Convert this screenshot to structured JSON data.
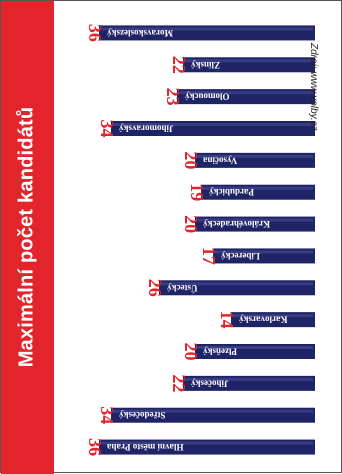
{
  "title": "Maximální počet kandidátů",
  "source": "Zdroj: www.volby.cz",
  "colors": {
    "banner": "#e3242b",
    "bar": "#1f2466",
    "bar_highlight": "#4c5299",
    "value_label": "#e3242b",
    "bar_text": "#ffffff"
  },
  "chart_data": {
    "type": "bar",
    "orientation": "horizontal-rotated",
    "categories": [
      "Hlavní město Praha",
      "Středočeský",
      "Jihočeský",
      "Plzeňský",
      "Karlovarský",
      "Ústecký",
      "Liberecký",
      "Královéhradecký",
      "Pardubický",
      "Vysočina",
      "Jihomoravský",
      "Olomoucký",
      "Zlínský",
      "Moravskoslezský"
    ],
    "values": [
      36,
      34,
      22,
      20,
      14,
      26,
      17,
      20,
      19,
      20,
      34,
      23,
      22,
      36
    ],
    "xlim": [
      0,
      36
    ]
  }
}
